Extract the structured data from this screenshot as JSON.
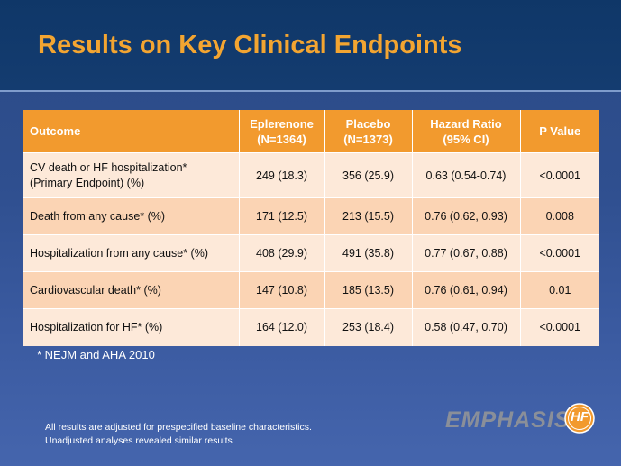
{
  "title": "Results on Key Clinical Endpoints",
  "table": {
    "headers": {
      "outcome": "Outcome",
      "eplerenone_line1": "Eplerenone",
      "eplerenone_line2": "(N=1364)",
      "placebo_line1": "Placebo",
      "placebo_line2": "(N=1373)",
      "hr_line1": "Hazard Ratio",
      "hr_line2": "(95% CI)",
      "pvalue": "P Value"
    },
    "rows": [
      {
        "outcome_line1": "CV death or HF hospitalization*",
        "outcome_line2": "(Primary Endpoint) (%)",
        "eplerenone": "249 (18.3)",
        "placebo": "356 (25.9)",
        "hr": "0.63 (0.54-0.74)",
        "p": "<0.0001"
      },
      {
        "outcome_line1": "Death from any cause* (%)",
        "outcome_line2": "",
        "eplerenone": "171 (12.5)",
        "placebo": "213 (15.5)",
        "hr": "0.76 (0.62, 0.93)",
        "p": "0.008"
      },
      {
        "outcome_line1": "Hospitalization from any cause* (%)",
        "outcome_line2": "",
        "eplerenone": "408 (29.9)",
        "placebo": "491 (35.8)",
        "hr": "0.77 (0.67, 0.88)",
        "p": "<0.0001"
      },
      {
        "outcome_line1": "Cardiovascular death* (%)",
        "outcome_line2": "",
        "eplerenone": "147 (10.8)",
        "placebo": "185 (13.5)",
        "hr": "0.76 (0.61, 0.94)",
        "p": "0.01"
      },
      {
        "outcome_line1": "Hospitalization for HF* (%)",
        "outcome_line2": "",
        "eplerenone": "164 (12.0)",
        "placebo": "253 (18.4)",
        "hr": "0.58 (0.47, 0.70)",
        "p": "<0.0001"
      }
    ]
  },
  "footnote": "* NEJM and AHA 2010",
  "adjusted_note": {
    "line1": "All results are adjusted for prespecified baseline characteristics.",
    "line2": "Unadjusted analyses revealed similar results"
  },
  "logo": {
    "word": "EMPHASIS",
    "badge": "HF"
  },
  "colors": {
    "title": "#f3a531",
    "header_bg": "#f29a2e",
    "row_light": "#fde9d9",
    "row_dark": "#fbd4b4",
    "badge": "#f29a2e"
  }
}
